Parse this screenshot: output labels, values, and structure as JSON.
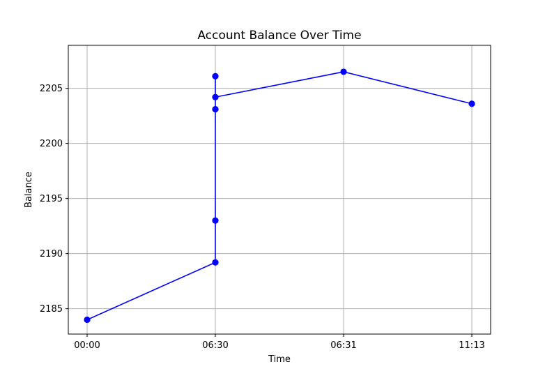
{
  "chart_data": {
    "type": "line",
    "title": "Account Balance Over Time",
    "xlabel": "Time",
    "ylabel": "Balance",
    "categories": [
      "00:00",
      "06:30",
      "06:31",
      "11:13"
    ],
    "x_ticks": [
      "00:00",
      "06:30",
      "06:31",
      "11:13"
    ],
    "y_ticks": [
      2185,
      2190,
      2195,
      2200,
      2205
    ],
    "ylim": [
      2182.7,
      2208.9
    ],
    "grid": true,
    "line_color": "#0000ff",
    "marker_color": "#0000ff",
    "grid_color": "#b0b0b0",
    "series": [
      {
        "points": [
          {
            "x": "00:00",
            "y": 2184.0
          },
          {
            "x": "06:30",
            "y": 2189.2
          },
          {
            "x": "06:30",
            "y": 2193.0
          },
          {
            "x": "06:30",
            "y": 2203.1
          },
          {
            "x": "06:30",
            "y": 2206.1
          },
          {
            "x": "06:30",
            "y": 2204.2
          },
          {
            "x": "06:31",
            "y": 2206.5
          },
          {
            "x": "11:13",
            "y": 2203.6
          }
        ]
      }
    ]
  }
}
